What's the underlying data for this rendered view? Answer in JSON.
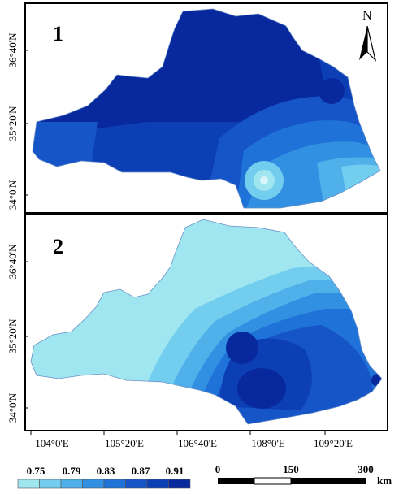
{
  "panels": [
    {
      "label": "1",
      "lat_ticks": [
        "36°40'N",
        "35°20'N",
        "34°0'N"
      ]
    },
    {
      "label": "2",
      "lat_ticks": [
        "36°40'N",
        "35°20'N",
        "34°0'N"
      ]
    }
  ],
  "lon_ticks": [
    "104°0'E",
    "105°20'E",
    "106°40'E",
    "108°0'E",
    "109°20'E"
  ],
  "north_arrow": {
    "label": "N"
  },
  "legend": {
    "labels": [
      "0.75",
      "0.79",
      "0.83",
      "0.87",
      "0.91"
    ],
    "colors": [
      "#9fe6f0",
      "#72cdee",
      "#4fb0ea",
      "#3290e2",
      "#1f72d8",
      "#1555c8",
      "#0d3fb4",
      "#08299e"
    ]
  },
  "scale_bar": {
    "labels": [
      "0",
      "150",
      "300"
    ],
    "unit": "km"
  }
}
